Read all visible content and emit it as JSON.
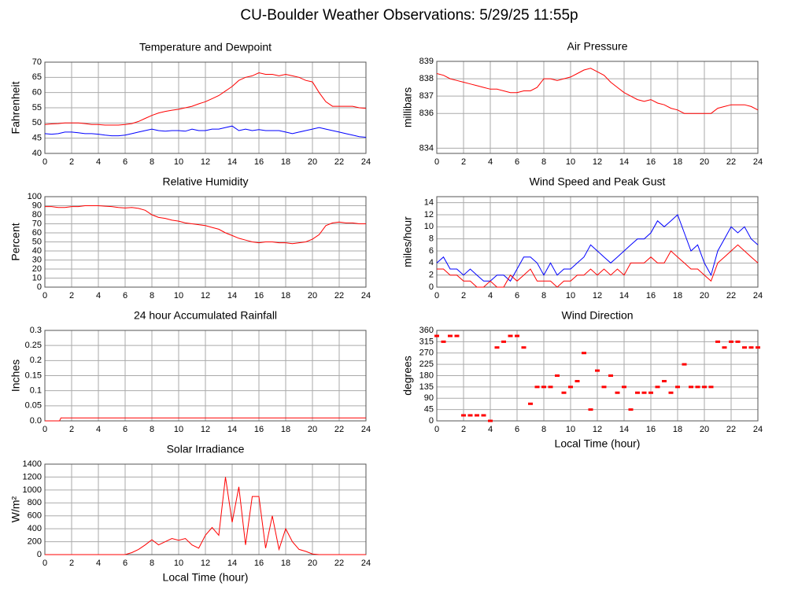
{
  "title": "CU-Boulder Weather Observations: 5/29/25 11:55p",
  "chart_data": [
    {
      "type": "line",
      "title": "Temperature and Dewpoint",
      "y_label": "Fahrenheit",
      "x": [
        0,
        0.5,
        1,
        1.5,
        2,
        2.5,
        3,
        3.5,
        4,
        4.5,
        5,
        5.5,
        6,
        6.5,
        7,
        7.5,
        8,
        8.5,
        9,
        9.5,
        10,
        10.5,
        11,
        11.5,
        12,
        12.5,
        13,
        13.5,
        14,
        14.5,
        15,
        15.5,
        16,
        16.5,
        17,
        17.5,
        18,
        18.5,
        19,
        19.5,
        20,
        20.5,
        21,
        21.5,
        22,
        22.5,
        23,
        23.5,
        24
      ],
      "series": [
        {
          "color": "#ff0000",
          "values": [
            49.5,
            49.7,
            49.8,
            50,
            50,
            50,
            49.8,
            49.5,
            49.5,
            49.3,
            49.3,
            49.3,
            49.5,
            49.8,
            50.5,
            51.5,
            52.5,
            53.3,
            53.8,
            54.2,
            54.5,
            55,
            55.5,
            56.3,
            57,
            58,
            59,
            60.5,
            62,
            64,
            65,
            65.5,
            66.5,
            66,
            66,
            65.5,
            66,
            65.5,
            65,
            64,
            63.5,
            60,
            57,
            55.5,
            55.5,
            55.5,
            55.5,
            55,
            54.8
          ]
        },
        {
          "color": "#0000ff",
          "values": [
            46.5,
            46.3,
            46.5,
            47,
            47,
            46.8,
            46.5,
            46.5,
            46.3,
            46,
            45.8,
            45.8,
            46,
            46.5,
            47,
            47.5,
            48,
            47.5,
            47.3,
            47.5,
            47.5,
            47.3,
            48,
            47.5,
            47.5,
            48,
            48,
            48.5,
            49,
            47.5,
            48,
            47.5,
            47.8,
            47.5,
            47.5,
            47.5,
            47,
            46.5,
            47,
            47.5,
            48,
            48.5,
            48,
            47.5,
            47,
            46.5,
            46,
            45.5,
            45.3
          ]
        }
      ],
      "xlim": [
        0,
        24
      ],
      "xticks": [
        0,
        2,
        4,
        6,
        8,
        10,
        12,
        14,
        16,
        18,
        20,
        22,
        24
      ],
      "ylim": [
        40,
        70
      ],
      "yticks": [
        40,
        45,
        50,
        55,
        60,
        65,
        70
      ],
      "grid": true
    },
    {
      "type": "line",
      "title": "Air Pressure",
      "y_label": "millibars",
      "x": [
        0,
        0.5,
        1,
        1.5,
        2,
        2.5,
        3,
        3.5,
        4,
        4.5,
        5,
        5.5,
        6,
        6.5,
        7,
        7.5,
        8,
        8.5,
        9,
        9.5,
        10,
        10.5,
        11,
        11.5,
        12,
        12.5,
        13,
        13.5,
        14,
        14.5,
        15,
        15.5,
        16,
        16.5,
        17,
        17.5,
        18,
        18.5,
        19,
        19.5,
        20,
        20.5,
        21,
        21.5,
        22,
        22.5,
        23,
        23.5,
        24
      ],
      "series": [
        {
          "color": "#ff0000",
          "values": [
            838.3,
            838.2,
            838,
            837.9,
            837.8,
            837.7,
            837.6,
            837.5,
            837.4,
            837.4,
            837.3,
            837.2,
            837.2,
            837.3,
            837.3,
            837.5,
            838,
            838,
            837.9,
            838,
            838.1,
            838.3,
            838.5,
            838.6,
            838.4,
            838.2,
            837.8,
            837.5,
            837.2,
            837,
            836.8,
            836.7,
            836.8,
            836.6,
            836.5,
            836.3,
            836.2,
            836,
            836,
            836,
            836,
            836,
            836.3,
            836.4,
            836.5,
            836.5,
            836.5,
            836.4,
            836.2
          ]
        }
      ],
      "xlim": [
        0,
        24
      ],
      "xticks": [
        0,
        2,
        4,
        6,
        8,
        10,
        12,
        14,
        16,
        18,
        20,
        22,
        24
      ],
      "ylim": [
        833.7,
        839
      ],
      "yticks": [
        834,
        836,
        837,
        838,
        839
      ],
      "grid": true
    },
    {
      "type": "line",
      "title": "Relative Humidity",
      "y_label": "Percent",
      "x": [
        0,
        0.5,
        1,
        1.5,
        2,
        2.5,
        3,
        3.5,
        4,
        4.5,
        5,
        5.5,
        6,
        6.5,
        7,
        7.5,
        8,
        8.5,
        9,
        9.5,
        10,
        10.5,
        11,
        11.5,
        12,
        12.5,
        13,
        13.5,
        14,
        14.5,
        15,
        15.5,
        16,
        16.5,
        17,
        17.5,
        18,
        18.5,
        19,
        19.5,
        20,
        20.5,
        21,
        21.5,
        22,
        22.5,
        23,
        23.5,
        24
      ],
      "series": [
        {
          "color": "#ff0000",
          "values": [
            89,
            89,
            88,
            88,
            89,
            89,
            90,
            90,
            90,
            89.5,
            89,
            88,
            87.5,
            88,
            87,
            85,
            80,
            77,
            76,
            74,
            73,
            71,
            70,
            69,
            68,
            66,
            64,
            60,
            57,
            54,
            52,
            50,
            49,
            50,
            50,
            49,
            49,
            48,
            49,
            50,
            53,
            58,
            68,
            71,
            72,
            71,
            71,
            70,
            70
          ]
        }
      ],
      "xlim": [
        0,
        24
      ],
      "xticks": [
        0,
        2,
        4,
        6,
        8,
        10,
        12,
        14,
        16,
        18,
        20,
        22,
        24
      ],
      "ylim": [
        0,
        100
      ],
      "yticks": [
        0,
        10,
        20,
        30,
        40,
        50,
        60,
        70,
        80,
        90,
        100
      ],
      "grid": true
    },
    {
      "type": "line",
      "title": "Wind Speed and Peak Gust",
      "y_label": "miles/hour",
      "x": [
        0,
        0.5,
        1,
        1.5,
        2,
        2.5,
        3,
        3.5,
        4,
        4.5,
        5,
        5.5,
        6,
        6.5,
        7,
        7.5,
        8,
        8.5,
        9,
        9.5,
        10,
        10.5,
        11,
        11.5,
        12,
        12.5,
        13,
        13.5,
        14,
        14.5,
        15,
        15.5,
        16,
        16.5,
        17,
        17.5,
        18,
        18.5,
        19,
        19.5,
        20,
        20.5,
        21,
        21.5,
        22,
        22.5,
        23,
        23.5,
        24
      ],
      "series": [
        {
          "color": "#0000ff",
          "values": [
            4,
            5,
            3,
            3,
            2,
            3,
            2,
            1,
            1,
            2,
            2,
            1,
            3,
            5,
            5,
            4,
            2,
            4,
            2,
            3,
            3,
            4,
            5,
            7,
            6,
            5,
            4,
            5,
            6,
            7,
            8,
            8,
            9,
            11,
            10,
            11,
            12,
            9,
            6,
            7,
            4,
            2,
            6,
            8,
            10,
            9,
            10,
            8,
            7
          ]
        },
        {
          "color": "#ff0000",
          "values": [
            3,
            3,
            2,
            2,
            1,
            1,
            0,
            0,
            1,
            0,
            0,
            2,
            1,
            2,
            3,
            1,
            1,
            1,
            0,
            1,
            1,
            2,
            2,
            3,
            2,
            3,
            2,
            3,
            2,
            4,
            4,
            4,
            5,
            4,
            4,
            6,
            5,
            4,
            3,
            3,
            2,
            1,
            4,
            5,
            6,
            7,
            6,
            5,
            4
          ]
        }
      ],
      "xlim": [
        0,
        24
      ],
      "xticks": [
        0,
        2,
        4,
        6,
        8,
        10,
        12,
        14,
        16,
        18,
        20,
        22,
        24
      ],
      "ylim": [
        0,
        15
      ],
      "yticks": [
        0,
        2,
        4,
        6,
        8,
        10,
        12,
        14
      ],
      "grid": true
    },
    {
      "type": "line",
      "title": "24 hour Accumulated Rainfall",
      "y_label": "Inches",
      "x": [
        0,
        1.1,
        1.2,
        24
      ],
      "series": [
        {
          "color": "#ff0000",
          "values": [
            0,
            0,
            0.01,
            0.01
          ]
        }
      ],
      "xlim": [
        0,
        24
      ],
      "xticks": [
        0,
        2,
        4,
        6,
        8,
        10,
        12,
        14,
        16,
        18,
        20,
        22,
        24
      ],
      "ylim": [
        0,
        0.3
      ],
      "yticks": [
        {
          "value": 0,
          "label": "0.0"
        },
        0.05,
        0.1,
        0.15,
        0.2,
        0.25,
        0.3
      ],
      "grid": true
    },
    {
      "type": "scatter",
      "title": "Wind Direction",
      "y_label": "degrees",
      "x_label": "Local Time (hour)",
      "x": [
        0,
        0.5,
        1,
        1.5,
        2,
        2.5,
        3,
        3.5,
        4,
        4.5,
        5,
        5.5,
        6,
        6.5,
        7,
        7.5,
        8,
        8.5,
        9,
        9.5,
        10,
        10.5,
        11,
        11.5,
        12,
        12.5,
        13,
        13.5,
        14,
        14.5,
        15,
        15.5,
        16,
        16.5,
        17,
        17.5,
        18,
        18.5,
        19,
        19.5,
        20,
        20.5,
        21,
        21.5,
        22,
        22.5,
        23,
        23.5,
        24
      ],
      "series": [
        {
          "color": "#ff0000",
          "values": [
            338,
            315,
            338,
            338,
            22,
            22,
            22,
            22,
            0,
            292,
            315,
            338,
            338,
            292,
            68,
            135,
            135,
            135,
            180,
            112,
            135,
            158,
            270,
            45,
            200,
            135,
            180,
            112,
            135,
            45,
            112,
            112,
            112,
            135,
            158,
            112,
            135,
            225,
            135,
            135,
            135,
            135,
            315,
            292,
            315,
            315,
            292,
            292,
            292
          ]
        }
      ],
      "xlim": [
        0,
        24
      ],
      "xticks": [
        0,
        2,
        4,
        6,
        8,
        10,
        12,
        14,
        16,
        18,
        20,
        22,
        24
      ],
      "ylim": [
        0,
        360
      ],
      "yticks": [
        0,
        45,
        90,
        135,
        180,
        225,
        270,
        315,
        360
      ],
      "grid": true
    },
    {
      "type": "line",
      "title": "Solar Irradiance",
      "y_label": "W/m²",
      "x_label": "Local Time (hour)",
      "x": [
        0,
        0.5,
        1,
        1.5,
        2,
        2.5,
        3,
        3.5,
        4,
        4.5,
        5,
        5.5,
        6,
        6.5,
        7,
        7.5,
        8,
        8.5,
        9,
        9.5,
        10,
        10.5,
        11,
        11.5,
        12,
        12.5,
        13,
        13.5,
        14,
        14.5,
        15,
        15.5,
        16,
        16.5,
        17,
        17.5,
        18,
        18.5,
        19,
        19.5,
        20,
        20.5,
        21,
        21.5,
        22,
        22.5,
        23,
        23.5,
        24
      ],
      "series": [
        {
          "color": "#ff0000",
          "values": [
            0,
            0,
            0,
            0,
            0,
            0,
            0,
            0,
            0,
            0,
            0,
            0,
            0,
            30,
            80,
            150,
            230,
            150,
            200,
            250,
            220,
            250,
            150,
            100,
            300,
            420,
            300,
            1200,
            500,
            1050,
            150,
            900,
            900,
            100,
            600,
            80,
            400,
            200,
            80,
            50,
            10,
            0,
            0,
            0,
            0,
            0,
            0,
            0,
            0
          ]
        }
      ],
      "xlim": [
        0,
        24
      ],
      "xticks": [
        0,
        2,
        4,
        6,
        8,
        10,
        12,
        14,
        16,
        18,
        20,
        22,
        24
      ],
      "ylim": [
        0,
        1400
      ],
      "yticks": [
        0,
        200,
        400,
        600,
        800,
        1000,
        1200,
        1400
      ],
      "grid": true
    }
  ]
}
